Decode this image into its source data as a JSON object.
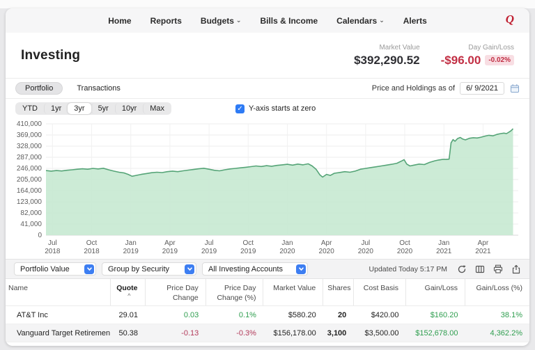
{
  "nav": {
    "items": [
      {
        "label": "Home"
      },
      {
        "label": "Reports"
      },
      {
        "label": "Budgets",
        "caret": true
      },
      {
        "label": "Bills & Income"
      },
      {
        "label": "Calendars",
        "caret": true
      },
      {
        "label": "Alerts"
      }
    ],
    "logo": "Q"
  },
  "header": {
    "title": "Investing",
    "market_value_label": "Market Value",
    "market_value": "$392,290.52",
    "day_gain_label": "Day Gain/Loss",
    "day_gain": "-$96.00",
    "day_gain_pct": "-0.02%"
  },
  "tabs": {
    "portfolio": "Portfolio",
    "transactions": "Transactions",
    "as_of_label": "Price and Holdings as of",
    "as_of_date": "6/ 9/2021"
  },
  "range": {
    "options": [
      "YTD",
      "1yr",
      "3yr",
      "5yr",
      "10yr",
      "Max"
    ],
    "selected": "3yr",
    "checkbox_label": "Y-axis starts at zero",
    "checkbox_checked": true,
    "check_glyph": "✓"
  },
  "chart_data": {
    "type": "area",
    "series_name": "Portfolio Value",
    "ylim": [
      0,
      410000
    ],
    "x_axis_end_months": 36.2,
    "grid": true,
    "legend": "none",
    "line_color": "#55a477",
    "area_color": "#c7e9d2",
    "y_ticks": [
      {
        "value": 410000,
        "label": "410,000"
      },
      {
        "value": 369000,
        "label": "369,000"
      },
      {
        "value": 328000,
        "label": "328,000"
      },
      {
        "value": 287000,
        "label": "287,000"
      },
      {
        "value": 246000,
        "label": "246,000"
      },
      {
        "value": 205000,
        "label": "205,000"
      },
      {
        "value": 164000,
        "label": "164,000"
      },
      {
        "value": 123000,
        "label": "123,000"
      },
      {
        "value": 82000,
        "label": "82,000"
      },
      {
        "value": 41000,
        "label": "41,000"
      },
      {
        "value": 0,
        "label": "0"
      }
    ],
    "x_ticks": [
      {
        "t": 0.5,
        "label": [
          "Jul",
          "2018"
        ]
      },
      {
        "t": 3.5,
        "label": [
          "Oct",
          "2018"
        ]
      },
      {
        "t": 6.5,
        "label": [
          "Jan",
          "2019"
        ]
      },
      {
        "t": 9.5,
        "label": [
          "Apr",
          "2019"
        ]
      },
      {
        "t": 12.5,
        "label": [
          "Jul",
          "2019"
        ]
      },
      {
        "t": 15.5,
        "label": [
          "Oct",
          "2019"
        ]
      },
      {
        "t": 18.5,
        "label": [
          "Jan",
          "2020"
        ]
      },
      {
        "t": 21.5,
        "label": [
          "Apr",
          "2020"
        ]
      },
      {
        "t": 24.5,
        "label": [
          "Jul",
          "2020"
        ]
      },
      {
        "t": 27.5,
        "label": [
          "Oct",
          "2020"
        ]
      },
      {
        "t": 30.5,
        "label": [
          "Jan",
          "2021"
        ]
      },
      {
        "t": 33.5,
        "label": [
          "Apr",
          "2021"
        ]
      }
    ],
    "series": [
      {
        "name": "Portfolio Value",
        "points": [
          [
            0,
            238000
          ],
          [
            0.4,
            236000
          ],
          [
            0.8,
            238000
          ],
          [
            1.2,
            236500
          ],
          [
            1.6,
            239000
          ],
          [
            2,
            241000
          ],
          [
            2.4,
            243000
          ],
          [
            2.8,
            244500
          ],
          [
            3.2,
            243000
          ],
          [
            3.6,
            246000
          ],
          [
            4,
            244000
          ],
          [
            4.4,
            246500
          ],
          [
            4.8,
            241000
          ],
          [
            5.2,
            236000
          ],
          [
            5.6,
            232000
          ],
          [
            6,
            229000
          ],
          [
            6.3,
            224000
          ],
          [
            6.6,
            217000
          ],
          [
            6.9,
            220000
          ],
          [
            7.3,
            224000
          ],
          [
            7.7,
            227000
          ],
          [
            8.1,
            230000
          ],
          [
            8.5,
            232000
          ],
          [
            8.9,
            230500
          ],
          [
            9.3,
            234000
          ],
          [
            9.7,
            236000
          ],
          [
            10.1,
            234000
          ],
          [
            10.5,
            237000
          ],
          [
            10.9,
            239500
          ],
          [
            11.3,
            242000
          ],
          [
            11.7,
            244500
          ],
          [
            12.1,
            246500
          ],
          [
            12.5,
            243000
          ],
          [
            12.9,
            239000
          ],
          [
            13.3,
            237000
          ],
          [
            13.7,
            241000
          ],
          [
            14.1,
            244000
          ],
          [
            14.5,
            246000
          ],
          [
            14.9,
            248000
          ],
          [
            15.3,
            250000
          ],
          [
            15.7,
            252500
          ],
          [
            16.1,
            255000
          ],
          [
            16.5,
            253000
          ],
          [
            16.9,
            256000
          ],
          [
            17.3,
            254000
          ],
          [
            17.7,
            257000
          ],
          [
            18.1,
            259000
          ],
          [
            18.5,
            261000
          ],
          [
            18.9,
            258000
          ],
          [
            19.3,
            262000
          ],
          [
            19.7,
            259000
          ],
          [
            20.1,
            263000
          ],
          [
            20.4,
            255000
          ],
          [
            20.7,
            243000
          ],
          [
            21,
            222000
          ],
          [
            21.2,
            214000
          ],
          [
            21.5,
            224000
          ],
          [
            21.8,
            220000
          ],
          [
            22.1,
            228000
          ],
          [
            22.5,
            231000
          ],
          [
            22.9,
            234000
          ],
          [
            23.3,
            232000
          ],
          [
            23.7,
            236000
          ],
          [
            24.1,
            243000
          ],
          [
            24.5,
            246000
          ],
          [
            24.9,
            249000
          ],
          [
            25.3,
            252000
          ],
          [
            25.7,
            255000
          ],
          [
            26.1,
            258000
          ],
          [
            26.5,
            261000
          ],
          [
            26.9,
            265000
          ],
          [
            27.2,
            272000
          ],
          [
            27.45,
            278000
          ],
          [
            27.65,
            262000
          ],
          [
            27.9,
            255000
          ],
          [
            28.2,
            258000
          ],
          [
            28.6,
            262000
          ],
          [
            29,
            260000
          ],
          [
            29.4,
            268000
          ],
          [
            29.8,
            274000
          ],
          [
            30.1,
            277000
          ],
          [
            30.4,
            279000
          ],
          [
            30.7,
            279000
          ],
          [
            30.9,
            280000
          ],
          [
            31.05,
            340000
          ],
          [
            31.2,
            352000
          ],
          [
            31.35,
            346000
          ],
          [
            31.55,
            356000
          ],
          [
            31.75,
            360000
          ],
          [
            31.95,
            354000
          ],
          [
            32.15,
            351000
          ],
          [
            32.45,
            357000
          ],
          [
            32.75,
            359000
          ],
          [
            33.05,
            358000
          ],
          [
            33.35,
            361000
          ],
          [
            33.65,
            365000
          ],
          [
            33.95,
            368000
          ],
          [
            34.25,
            366000
          ],
          [
            34.55,
            371000
          ],
          [
            34.85,
            374000
          ],
          [
            35.1,
            376000
          ],
          [
            35.3,
            374000
          ],
          [
            35.5,
            380000
          ],
          [
            35.65,
            385000
          ],
          [
            35.8,
            392000
          ]
        ]
      }
    ]
  },
  "toolbar": {
    "selects": [
      {
        "value": "Portfolio Value"
      },
      {
        "value": "Group by Security"
      },
      {
        "value": "All Investing Accounts"
      }
    ],
    "updated": "Updated Today  5:17 PM",
    "icons": [
      "refresh-icon",
      "columns-icon",
      "print-icon",
      "share-icon"
    ]
  },
  "table": {
    "columns": [
      {
        "label": "Name"
      },
      {
        "label": "Quote",
        "sorted": "asc"
      },
      {
        "label": "Price Day Change"
      },
      {
        "label": "Price Day Change (%)"
      },
      {
        "label": "Market Value"
      },
      {
        "label": "Shares"
      },
      {
        "label": "Cost Basis"
      },
      {
        "label": "Gain/Loss"
      },
      {
        "label": "Gain/Loss (%)"
      }
    ],
    "sort_caret": "^",
    "rows": [
      {
        "shaded": false,
        "cells": [
          {
            "t": "AT&T Inc"
          },
          {
            "t": "29.01"
          },
          {
            "t": "0.03",
            "c": "pos"
          },
          {
            "t": "0.1%",
            "c": "pos"
          },
          {
            "t": "$580.20"
          },
          {
            "t": "20",
            "b": true
          },
          {
            "t": "$420.00"
          },
          {
            "t": "$160.20",
            "c": "pos"
          },
          {
            "t": "38.1%",
            "c": "pos"
          }
        ]
      },
      {
        "shaded": true,
        "cells": [
          {
            "t": "Vanguard Target Retirement..."
          },
          {
            "t": "50.38"
          },
          {
            "t": "-0.13",
            "c": "neg"
          },
          {
            "t": "-0.3%",
            "c": "neg"
          },
          {
            "t": "$156,178.00"
          },
          {
            "t": "3,100",
            "b": true
          },
          {
            "t": "$3,500.00"
          },
          {
            "t": "$152,678.00",
            "c": "pos"
          },
          {
            "t": "4,362.2%",
            "c": "pos"
          }
        ]
      }
    ]
  },
  "colors": {
    "accent_blue": "#2e7bf5",
    "brand_red": "#c02032",
    "gain_green": "#2f9e4f",
    "loss_crimson": "#b23a5a",
    "day_loss_red": "#c22f44",
    "badge_bg": "#f8dee3",
    "chart_line": "#55a477",
    "chart_fill": "#c7e9d2"
  }
}
